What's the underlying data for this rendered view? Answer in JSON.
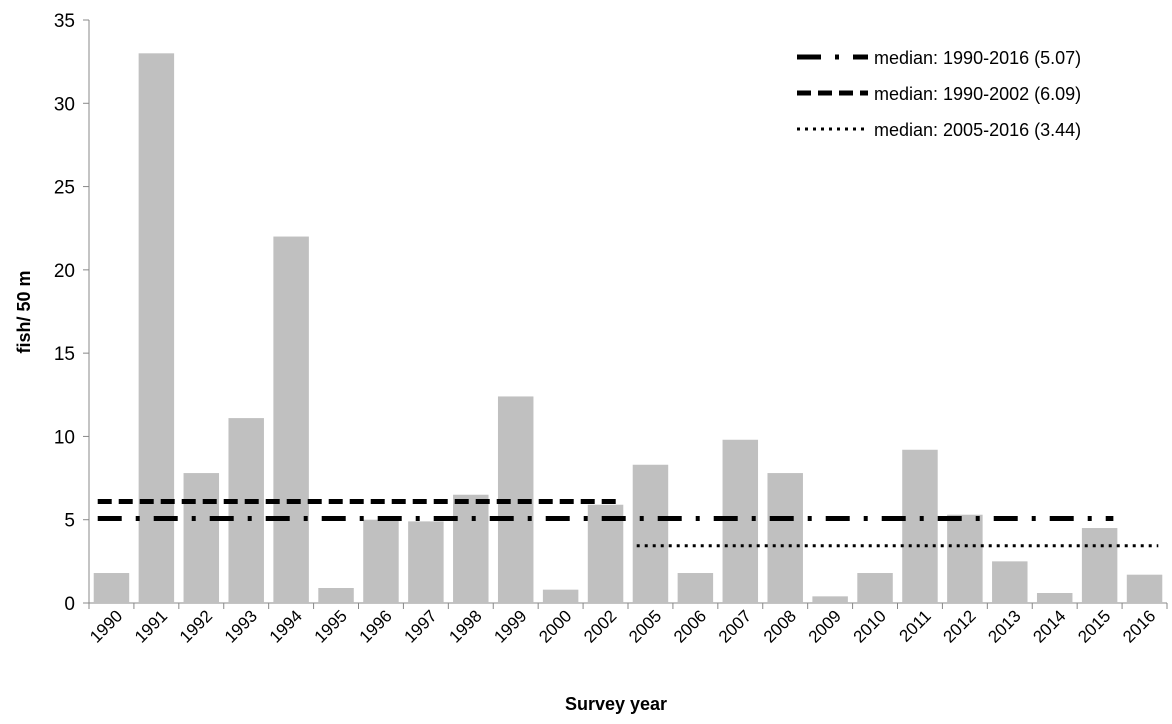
{
  "chart_data": {
    "type": "bar",
    "xlabel": "Survey year",
    "ylabel": "fish/ 50 m",
    "ylim": [
      0,
      35
    ],
    "yticks": [
      0,
      5,
      10,
      15,
      20,
      25,
      30,
      35
    ],
    "grid": false,
    "legend_position": "top-right",
    "bar_color": "#c0c0c0",
    "categories": [
      "1990",
      "1991",
      "1992",
      "1993",
      "1994",
      "1995",
      "1996",
      "1997",
      "1998",
      "1999",
      "2000",
      "2002",
      "2005",
      "2006",
      "2007",
      "2008",
      "2009",
      "2010",
      "2011",
      "2012",
      "2013",
      "2014",
      "2015",
      "2016"
    ],
    "values": [
      1.8,
      33.0,
      7.8,
      11.1,
      22.0,
      0.9,
      5.0,
      4.9,
      6.5,
      12.4,
      0.8,
      5.9,
      8.3,
      1.8,
      9.8,
      7.8,
      0.4,
      1.8,
      9.2,
      5.3,
      2.5,
      0.6,
      4.5,
      1.7
    ],
    "reference_lines": [
      {
        "name": "median: 1990-2016 (5.07)",
        "value": 5.07,
        "from": "1990",
        "to": "2015",
        "style": "dash-dot",
        "color": "#000000"
      },
      {
        "name": "median: 1990-2002 (6.09)",
        "value": 6.09,
        "from": "1990",
        "to": "2002",
        "style": "dash",
        "color": "#000000"
      },
      {
        "name": "median: 2005-2016 (3.44)",
        "value": 3.44,
        "from": "2005",
        "to": "2016",
        "style": "dot",
        "color": "#000000"
      }
    ]
  }
}
